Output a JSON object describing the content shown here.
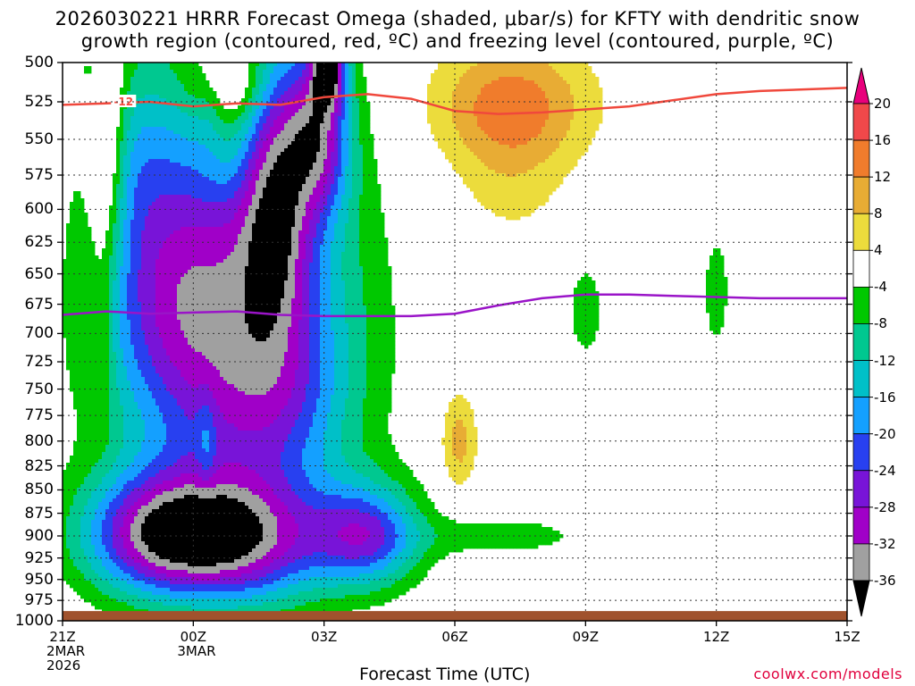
{
  "header": {
    "title_line1": "2026030221 HRRR Forecast Omega (shaded, μbar/s) for KFTY with dendritic snow",
    "title_line2": "growth region (contoured, red, ºC) and freezing level (contoured, purple, ºC)"
  },
  "footer": {
    "xlabel": "Forecast Time (UTC)",
    "credit": "coolwx.com/models"
  },
  "chart_data": {
    "type": "heatmap",
    "x_ticks": [
      {
        "label": "21Z",
        "hour": 0,
        "sub": [
          "2MAR",
          "2026"
        ]
      },
      {
        "label": "00Z",
        "hour": 3,
        "sub": [
          "3MAR"
        ]
      },
      {
        "label": "03Z",
        "hour": 6,
        "sub": []
      },
      {
        "label": "06Z",
        "hour": 9,
        "sub": []
      },
      {
        "label": "09Z",
        "hour": 12,
        "sub": []
      },
      {
        "label": "12Z",
        "hour": 15,
        "sub": []
      },
      {
        "label": "15Z",
        "hour": 18,
        "sub": []
      }
    ],
    "x_range_hours": [
      0,
      18
    ],
    "y_range_mb": [
      500,
      1000
    ],
    "y_ticks": [
      500,
      525,
      550,
      575,
      600,
      625,
      650,
      675,
      700,
      725,
      750,
      775,
      800,
      825,
      850,
      875,
      900,
      925,
      950,
      975,
      1000
    ],
    "y_scale": "log-pressure",
    "grid": true,
    "colorbar": {
      "labels": [
        "20",
        "16",
        "12",
        "8",
        "4",
        "-4",
        "-8",
        "-12",
        "-16",
        "-20",
        "-24",
        "-28",
        "-32",
        "-36"
      ],
      "bins": [
        {
          "lo": 20,
          "hi": 24,
          "color": "#e8007c"
        },
        {
          "lo": 16,
          "hi": 20,
          "color": "#f0484a"
        },
        {
          "lo": 12,
          "hi": 16,
          "color": "#f07c2c"
        },
        {
          "lo": 8,
          "hi": 12,
          "color": "#e8ac34"
        },
        {
          "lo": 4,
          "hi": 8,
          "color": "#ecdc3c"
        },
        {
          "lo": -4,
          "hi": 4,
          "color": "#ffffff"
        },
        {
          "lo": -8,
          "hi": -4,
          "color": "#00c800"
        },
        {
          "lo": -12,
          "hi": -8,
          "color": "#00c890"
        },
        {
          "lo": -16,
          "hi": -12,
          "color": "#00c0c8"
        },
        {
          "lo": -20,
          "hi": -16,
          "color": "#14a0ff"
        },
        {
          "lo": -24,
          "hi": -20,
          "color": "#2840f0"
        },
        {
          "lo": -28,
          "hi": -24,
          "color": "#7814d8"
        },
        {
          "lo": -32,
          "hi": -28,
          "color": "#a000c8"
        },
        {
          "lo": -36,
          "hi": -32,
          "color": "#a0a0a0"
        },
        {
          "lo": -40,
          "hi": -36,
          "color": "#000000"
        }
      ]
    },
    "omega_features": [
      {
        "hour": 4.0,
        "mb": 685,
        "peak": -28,
        "sx": 1.8,
        "sy": 120
      },
      {
        "hour": 4.9,
        "mb": 590,
        "peak": -20,
        "sx": 0.55,
        "sy": 70
      },
      {
        "hour": 5.9,
        "mb": 545,
        "peak": -24,
        "sx": 0.5,
        "sy": 40
      },
      {
        "hour": 6.1,
        "mb": 500,
        "peak": -30,
        "sx": 0.25,
        "sy": 18
      },
      {
        "hour": 5.0,
        "mb": 760,
        "peak": -8,
        "sx": 1.1,
        "sy": 55
      },
      {
        "hour": 2.2,
        "mb": 660,
        "peak": -12,
        "sx": 1.1,
        "sy": 85
      },
      {
        "hour": 1.6,
        "mb": 560,
        "peak": -6,
        "sx": 0.6,
        "sy": 45
      },
      {
        "hour": 3.4,
        "mb": 520,
        "peak": -5,
        "sx": 0.25,
        "sy": 22
      },
      {
        "hour": 0.6,
        "mb": 505,
        "peak": -5,
        "sx": 0.1,
        "sy": 8
      },
      {
        "hour": 2.0,
        "mb": 898,
        "peak": -23,
        "sx": 1.2,
        "sy": 48
      },
      {
        "hour": 4.0,
        "mb": 905,
        "peak": -30,
        "sx": 1.5,
        "sy": 52
      },
      {
        "hour": 7.0,
        "mb": 900,
        "peak": -22,
        "sx": 0.85,
        "sy": 40
      },
      {
        "hour": 10.1,
        "mb": 900,
        "peak": -6,
        "sx": 1.5,
        "sy": 17
      },
      {
        "hour": 15.0,
        "mb": 665,
        "peak": -6,
        "sx": 0.25,
        "sy": 40
      },
      {
        "hour": 12.0,
        "mb": 680,
        "peak": -6,
        "sx": 0.35,
        "sy": 35
      },
      {
        "hour": 1.0,
        "mb": 560,
        "peak": 13,
        "sx": 0.3,
        "sy": 60
      },
      {
        "hour": 0.9,
        "mb": 705,
        "peak": 6,
        "sx": 0.2,
        "sy": 55
      },
      {
        "hour": 3.8,
        "mb": 510,
        "peak": 14,
        "sx": 0.6,
        "sy": 20
      },
      {
        "hour": 3.9,
        "mb": 555,
        "peak": 6,
        "sx": 0.5,
        "sy": 30
      },
      {
        "hour": 10.3,
        "mb": 525,
        "peak": 11,
        "sx": 1.4,
        "sy": 28
      },
      {
        "hour": 10.3,
        "mb": 565,
        "peak": 6,
        "sx": 1.0,
        "sy": 45
      },
      {
        "hour": 9.1,
        "mb": 800,
        "peak": 10,
        "sx": 0.3,
        "sy": 35
      },
      {
        "hour": 3.3,
        "mb": 800,
        "peak": 6,
        "sx": 0.15,
        "sy": 35
      }
    ],
    "dgz_contour": {
      "label": "-12",
      "color": "#f0483c",
      "hours": [
        0,
        1,
        2,
        3,
        4,
        5,
        6,
        7,
        8,
        9,
        10,
        11,
        12,
        13,
        14,
        15,
        16,
        17,
        18
      ],
      "mb": [
        527,
        526,
        525,
        528,
        526,
        527,
        522,
        520,
        523,
        531,
        533,
        532,
        530,
        528,
        524,
        520,
        518,
        517,
        516
      ]
    },
    "freezing_contour": {
      "color": "#9a14c8",
      "hours": [
        0,
        1,
        2,
        3,
        4,
        5,
        6,
        7,
        8,
        9,
        10,
        11,
        12,
        13,
        14,
        15,
        16,
        17,
        18
      ],
      "mb": [
        684,
        681,
        683,
        682,
        681,
        684,
        685,
        685,
        685,
        683,
        676,
        670,
        667,
        667,
        668,
        669,
        670,
        670,
        670
      ]
    },
    "terrain": {
      "color": "#a0522d",
      "surface_mb": 988
    }
  }
}
